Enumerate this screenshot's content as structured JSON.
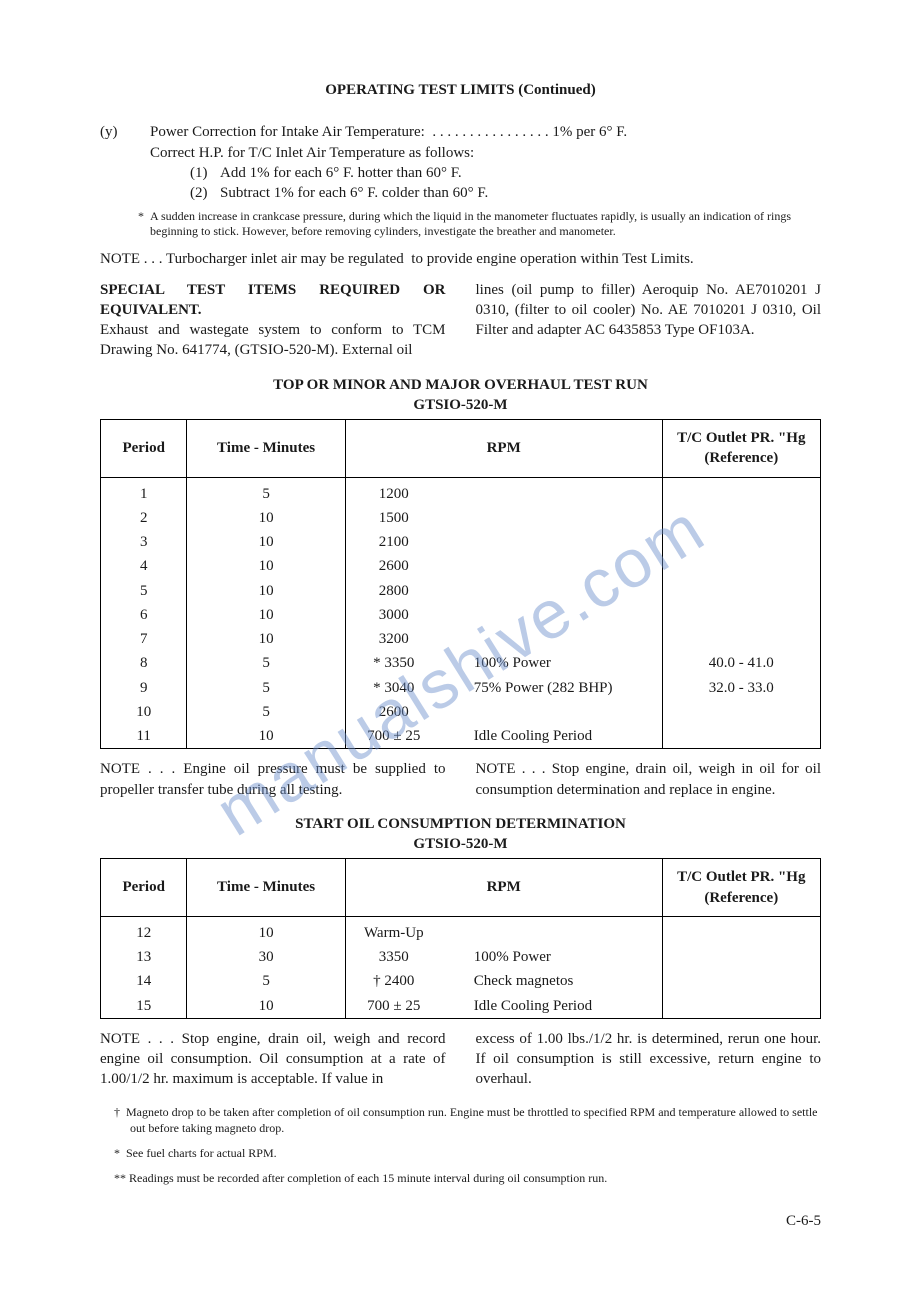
{
  "title": "OPERATING TEST LIMITS (Continued)",
  "item_y": {
    "tag": "(y)",
    "line1": "Power Correction for Intake Air Temperature:  . . . . . . . . . . . . . . . . 1% per 6° F.",
    "line2": "Correct H.P. for T/C Inlet Air Temperature as follows:",
    "sub": [
      {
        "n": "(1)",
        "t": "Add 1% for each 6° F. hotter than 60° F."
      },
      {
        "n": "(2)",
        "t": "Subtract 1% for each 6° F. colder than 60° F."
      }
    ]
  },
  "star_note": "*  A sudden increase in crankcase pressure, during which the liquid in the manometer fluctuates rapidly, is usually an indication of rings beginning to stick. However, before removing cylinders, investigate the breather and manometer.",
  "note_turbo": "NOTE . . . Turbocharger inlet air may be regulated  to provide engine operation within Test Limits.",
  "special": {
    "left_bold": "SPECIAL TEST ITEMS REQUIRED OR EQUIVALENT.",
    "left_rest": "Exhaust and wastegate system to conform to TCM Drawing No. 641774, (GTSIO-520-M). External oil",
    "right": "lines (oil pump to filler) Aeroquip No. AE7010201 J 0310, (filter to oil cooler) No. AE 7010201 J 0310, Oil Filter and adapter AC 6435853 Type OF103A."
  },
  "table1": {
    "title": "TOP OR MINOR AND MAJOR OVERHAUL TEST RUN",
    "sub": "GTSIO-520-M",
    "headers": [
      "Period",
      "Time - Minutes",
      "RPM",
      "T/C Outlet PR. \"Hg (Reference)"
    ],
    "rows": [
      {
        "p": "1",
        "t": "5",
        "rpm": "1200",
        "label": "",
        "tc": ""
      },
      {
        "p": "2",
        "t": "10",
        "rpm": "1500",
        "label": "",
        "tc": ""
      },
      {
        "p": "3",
        "t": "10",
        "rpm": "2100",
        "label": "",
        "tc": ""
      },
      {
        "p": "4",
        "t": "10",
        "rpm": "2600",
        "label": "",
        "tc": ""
      },
      {
        "p": "5",
        "t": "10",
        "rpm": "2800",
        "label": "",
        "tc": ""
      },
      {
        "p": "6",
        "t": "10",
        "rpm": "3000",
        "label": "",
        "tc": ""
      },
      {
        "p": "7",
        "t": "10",
        "rpm": "3200",
        "label": "",
        "tc": ""
      },
      {
        "p": "8",
        "t": "5",
        "rpm": "* 3350",
        "label": "100% Power",
        "tc": "40.0 - 41.0"
      },
      {
        "p": "9",
        "t": "5",
        "rpm": "* 3040",
        "label": "75% Power (282 BHP)",
        "tc": "32.0 - 33.0"
      },
      {
        "p": "10",
        "t": "5",
        "rpm": "2600",
        "label": "",
        "tc": ""
      },
      {
        "p": "11",
        "t": "10",
        "rpm": "700 ± 25",
        "label": "Idle Cooling Period",
        "tc": ""
      }
    ]
  },
  "mid_notes": {
    "left": "NOTE . . . Engine oil pressure must be supplied to propeller transfer tube during all testing.",
    "right": "NOTE . . . Stop engine, drain oil, weigh in oil for oil consumption determination and replace in engine."
  },
  "table2": {
    "title": "START OIL CONSUMPTION DETERMINATION",
    "sub": "GTSIO-520-M",
    "headers": [
      "Period",
      "Time - Minutes",
      "RPM",
      "T/C Outlet PR. \"Hg (Reference)"
    ],
    "rows": [
      {
        "p": "12",
        "t": "10",
        "rpm": "Warm-Up",
        "label": "",
        "tc": ""
      },
      {
        "p": "13",
        "t": "30",
        "rpm": "3350",
        "label": "100% Power",
        "tc": ""
      },
      {
        "p": "14",
        "t": "5",
        "rpm": "† 2400",
        "label": "Check magnetos",
        "tc": ""
      },
      {
        "p": "15",
        "t": "10",
        "rpm": "700 ± 25",
        "label": "Idle Cooling Period",
        "tc": ""
      }
    ]
  },
  "end_notes": {
    "left": "NOTE . . . Stop engine, drain oil, weigh and record engine oil consumption. Oil consumption at a rate of 1.00/1/2 hr. maximum is acceptable. If value in",
    "right": "excess of 1.00 lbs./1/2 hr. is determined, rerun one hour. If oil consumption is still excessive, return engine to overhaul."
  },
  "footnotes": [
    "†  Magneto drop to be taken after completion of oil consumption run. Engine must be throttled to specified RPM and temperature allowed to settle out before taking magneto drop.",
    "*  See fuel charts for actual RPM.",
    "** Readings must be recorded after completion of each 15 minute interval during oil consumption run."
  ],
  "page_num": "C-6-5",
  "watermark": "manualshive.com"
}
